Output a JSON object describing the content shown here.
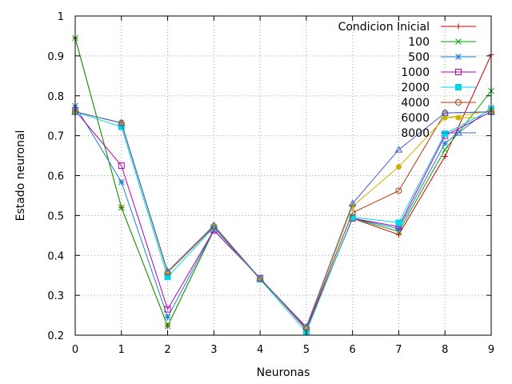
{
  "chart_data": {
    "type": "line",
    "title": "",
    "xlabel": "Neuronas",
    "ylabel": "Estado neuronal",
    "xlim": [
      0,
      9
    ],
    "ylim": [
      0.2,
      1.0
    ],
    "x": [
      0,
      1,
      2,
      3,
      4,
      5,
      6,
      7,
      8,
      9
    ],
    "x_ticks": [
      "0",
      "1",
      "2",
      "3",
      "4",
      "5",
      "6",
      "7",
      "8",
      "9"
    ],
    "y_ticks": [
      "0.2",
      "0.3",
      "0.4",
      "0.5",
      "0.6",
      "0.7",
      "0.8",
      "0.9",
      "1"
    ],
    "grid": true,
    "legend_position": "top-right",
    "series": [
      {
        "name": "Condicion Inicial",
        "color": "#cc0000",
        "marker": "plus",
        "values": [
          0.945,
          0.52,
          0.223,
          0.463,
          0.343,
          0.215,
          0.493,
          0.452,
          0.648,
          0.903
        ]
      },
      {
        "name": "100",
        "color": "#00aa00",
        "marker": "x",
        "values": [
          0.945,
          0.52,
          0.223,
          0.463,
          0.343,
          0.215,
          0.493,
          0.46,
          0.665,
          0.812
        ]
      },
      {
        "name": "500",
        "color": "#1f7fcf",
        "marker": "star",
        "values": [
          0.775,
          0.584,
          0.245,
          0.463,
          0.343,
          0.215,
          0.493,
          0.467,
          0.681,
          0.77
        ]
      },
      {
        "name": "1000",
        "color": "#b400b4",
        "marker": "square-open",
        "values": [
          0.763,
          0.625,
          0.265,
          0.463,
          0.343,
          0.215,
          0.493,
          0.472,
          0.7,
          0.76
        ]
      },
      {
        "name": "2000",
        "color": "#00d7e6",
        "marker": "square-filled",
        "values": [
          0.76,
          0.722,
          0.346,
          0.47,
          0.34,
          0.208,
          0.496,
          0.482,
          0.705,
          0.765
        ]
      },
      {
        "name": "4000",
        "color": "#b03a0a",
        "marker": "circle-open",
        "values": [
          0.76,
          0.732,
          0.357,
          0.472,
          0.341,
          0.218,
          0.507,
          0.562,
          0.757,
          0.76
        ]
      },
      {
        "name": "6000",
        "color": "#c8b400",
        "marker": "circle-filled",
        "values": [
          0.76,
          0.732,
          0.358,
          0.475,
          0.342,
          0.22,
          0.523,
          0.622,
          0.745,
          0.762
        ]
      },
      {
        "name": "8000",
        "color": "#3f5fcf",
        "marker": "triangle-open",
        "values": [
          0.76,
          0.732,
          0.36,
          0.475,
          0.342,
          0.221,
          0.53,
          0.665,
          0.757,
          0.76
        ]
      }
    ]
  }
}
